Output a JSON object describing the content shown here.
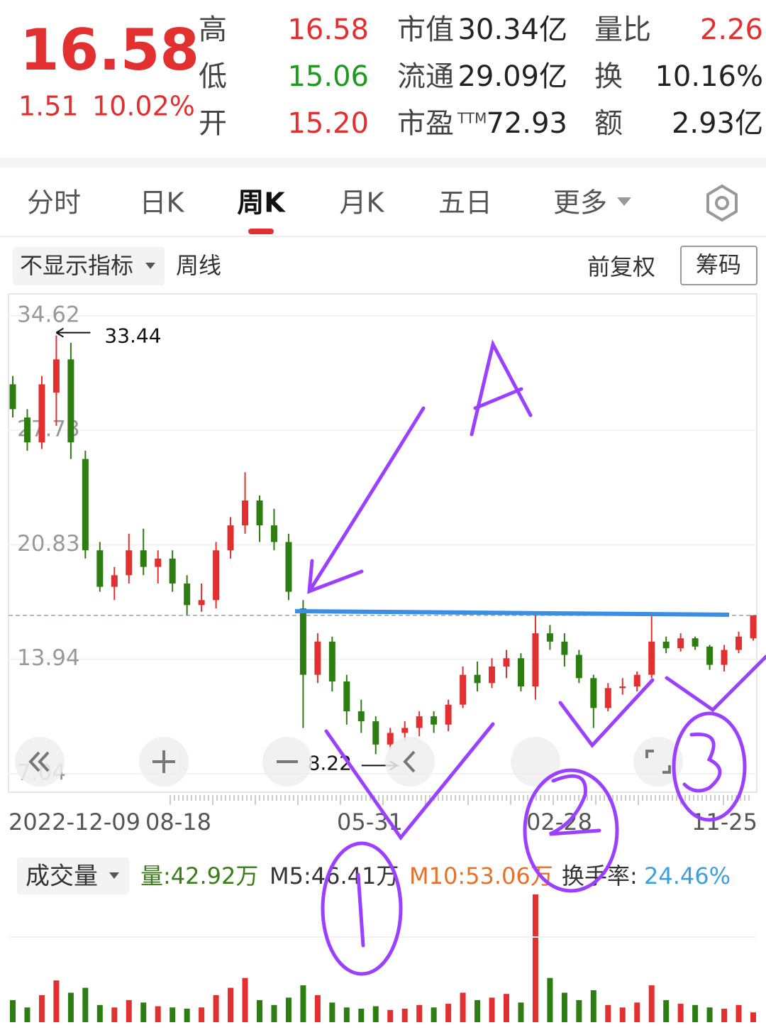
{
  "quote": {
    "price": "16.58",
    "change": "1.51",
    "change_pct": "10.02%",
    "left": [
      {
        "label": "高",
        "value": "16.58"
      },
      {
        "label": "低",
        "value": "15.06"
      },
      {
        "label": "开",
        "value": "15.20"
      }
    ],
    "mid": [
      {
        "label": "市值",
        "value": "30.34亿"
      },
      {
        "label": "流通",
        "value": "29.09亿"
      },
      {
        "label": "市盈",
        "sup": "TTM",
        "value": "72.93"
      }
    ],
    "right": [
      {
        "label": "量比",
        "value": "2.26"
      },
      {
        "label": "换",
        "value": "10.16%"
      },
      {
        "label": "额",
        "value": "2.93亿"
      }
    ]
  },
  "tabs": [
    "分时",
    "日K",
    "周K",
    "月K",
    "五日",
    "更多"
  ],
  "toolbar": {
    "indicator": "不显示指标",
    "period": "周线",
    "adjust": "前复权",
    "chips": "筹码"
  },
  "kline": {
    "ylim": [
      7.04,
      34.62
    ],
    "yticks": [
      34.62,
      27.73,
      20.83,
      13.94,
      7.04
    ],
    "last_price": 16.58,
    "high_label": "33.44",
    "low_label": "8.22",
    "dates": [
      "2022-12-09",
      "08-18",
      "05-31",
      "02-28",
      "11-25"
    ],
    "candles": [
      [
        30.5,
        31,
        28.5,
        29
      ],
      [
        28.5,
        29,
        26.5,
        27
      ],
      [
        27,
        31,
        26.6,
        30.5
      ],
      [
        30,
        33.44,
        28,
        32
      ],
      [
        32,
        33,
        26,
        27
      ],
      [
        26,
        26.5,
        20,
        20.5
      ],
      [
        20.5,
        21,
        18,
        18.3
      ],
      [
        18.3,
        19.5,
        17.5,
        19
      ],
      [
        19,
        21.5,
        18.5,
        20.5
      ],
      [
        20.5,
        21.8,
        19,
        19.5
      ],
      [
        19.5,
        20.5,
        18.5,
        20
      ],
      [
        20,
        20.5,
        18,
        18.5
      ],
      [
        18.5,
        19,
        16.6,
        17.2
      ],
      [
        17.2,
        18.5,
        16.8,
        17.5
      ],
      [
        17.5,
        21,
        17,
        20.5
      ],
      [
        20.5,
        22.5,
        20,
        22
      ],
      [
        22,
        25.2,
        21.5,
        23.5
      ],
      [
        23.5,
        23.8,
        21,
        22
      ],
      [
        22,
        23,
        20.5,
        21
      ],
      [
        21,
        21.5,
        17.5,
        18
      ],
      [
        17,
        17.5,
        9.8,
        13
      ],
      [
        13,
        15.5,
        12.5,
        15
      ],
      [
        15,
        15.3,
        12,
        12.6
      ],
      [
        12.6,
        13,
        10,
        10.8
      ],
      [
        10.8,
        11.5,
        9.5,
        10.2
      ],
      [
        10.2,
        10.5,
        8.22,
        8.8
      ],
      [
        8.8,
        9.8,
        8.5,
        9.5
      ],
      [
        9.5,
        10.2,
        9,
        9.8
      ],
      [
        9.8,
        10.8,
        9.3,
        10.5
      ],
      [
        10.5,
        10.8,
        9.5,
        10
      ],
      [
        10,
        11.5,
        9.6,
        11.2
      ],
      [
        11.2,
        13.5,
        11,
        13
      ],
      [
        13,
        13.8,
        12,
        12.5
      ],
      [
        12.5,
        14,
        12.2,
        13.5
      ],
      [
        13.5,
        14.5,
        12.8,
        14
      ],
      [
        14,
        14.3,
        12,
        12.3
      ],
      [
        12.3,
        16.6,
        11.5,
        15.5
      ],
      [
        15.5,
        16,
        14.5,
        15
      ],
      [
        15,
        15.5,
        13.5,
        14.2
      ],
      [
        14.2,
        14.5,
        12.5,
        12.8
      ],
      [
        12.8,
        13,
        9.8,
        11
      ],
      [
        11,
        12.5,
        10.8,
        12.2
      ],
      [
        12.2,
        12.8,
        11.8,
        12.3
      ],
      [
        12.3,
        13.2,
        12,
        13
      ],
      [
        13,
        16.6,
        12.8,
        15
      ],
      [
        15,
        15.3,
        14.3,
        14.6
      ],
      [
        14.6,
        15.5,
        14.4,
        15.2
      ],
      [
        15.2,
        15.3,
        14.5,
        14.7
      ],
      [
        14.7,
        14.8,
        13.3,
        13.6
      ],
      [
        13.6,
        14.8,
        13.2,
        14.5
      ],
      [
        14.5,
        15.6,
        14.3,
        15.3
      ],
      [
        15.2,
        16.58,
        15.06,
        16.58
      ]
    ],
    "volume": [
      90,
      60,
      110,
      170,
      120,
      140,
      70,
      60,
      90,
      80,
      65,
      60,
      55,
      60,
      110,
      140,
      180,
      90,
      70,
      100,
      150,
      110,
      80,
      60,
      55,
      65,
      50,
      55,
      70,
      60,
      75,
      120,
      90,
      100,
      115,
      80,
      520,
      180,
      120,
      90,
      130,
      70,
      60,
      80,
      150,
      90,
      75,
      70,
      60,
      55,
      70,
      40
    ]
  },
  "volume_panel": {
    "title": "成交量",
    "vol": "量:42.92万",
    "m5": "M5:46.41万",
    "m10": "M10:53.06万",
    "turnover_label": "换手率:",
    "turnover": "24.46%"
  }
}
